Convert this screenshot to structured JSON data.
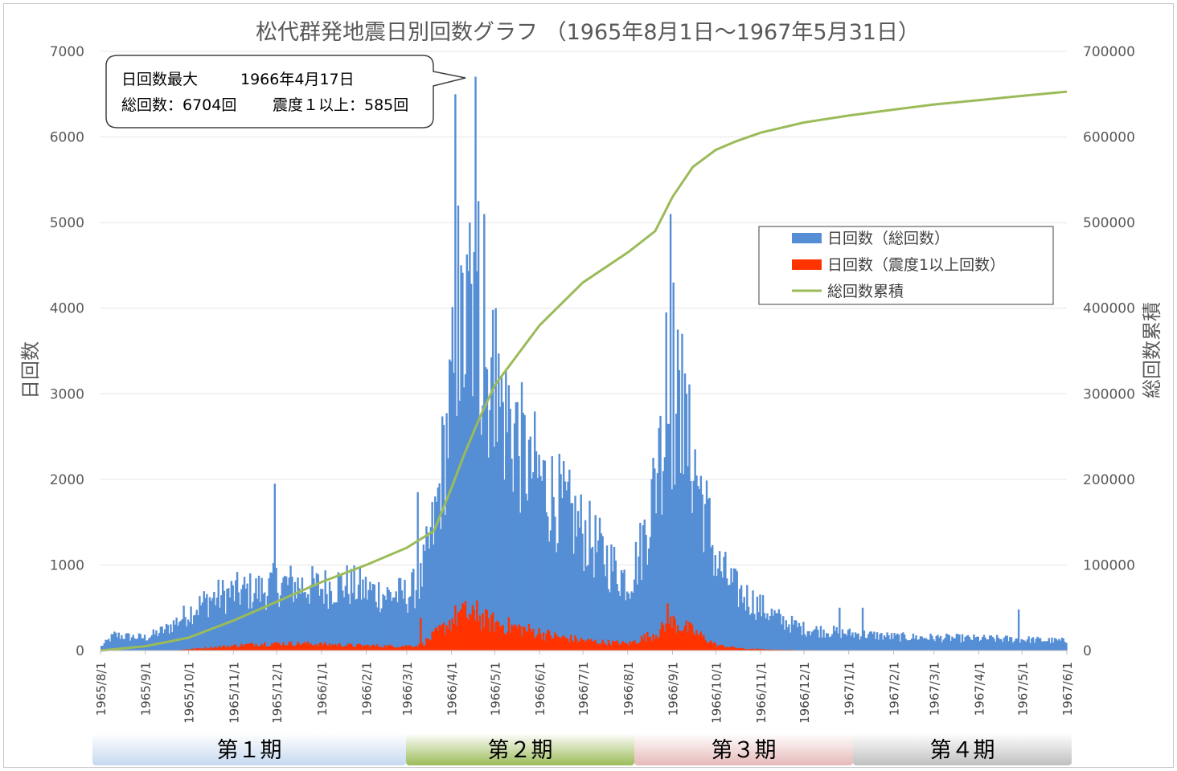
{
  "chart_data": {
    "type": "bar+line",
    "title": "松代群発地震日別回数グラフ （1965年8月1日～1967年5月31日）",
    "ylabel_left": "日回数",
    "ylabel_right": "総回数累積",
    "ylim_left": [
      0,
      7000
    ],
    "ylim_right": [
      0,
      700000
    ],
    "yticks_left": [
      "0",
      "1000",
      "2000",
      "3000",
      "4000",
      "5000",
      "6000",
      "7000"
    ],
    "yticks_right": [
      "0",
      "100000",
      "200000",
      "300000",
      "400000",
      "500000",
      "600000",
      "700000"
    ],
    "x_range": [
      "1965/8/1",
      "1967/6/1"
    ],
    "xticks": [
      "1965/8/1",
      "1965/9/1",
      "1965/10/1",
      "1965/11/1",
      "1965/12/1",
      "1966/1/1",
      "1966/2/1",
      "1966/3/1",
      "1966/4/1",
      "1966/5/1",
      "1966/6/1",
      "1966/7/1",
      "1966/8/1",
      "1966/9/1",
      "1966/10/1",
      "1966/11/1",
      "1966/12/1",
      "1967/1/1",
      "1967/2/1",
      "1967/3/1",
      "1967/4/1",
      "1967/5/1",
      "1967/6/1"
    ],
    "grid": true,
    "legend_position": "right-middle",
    "annotation": {
      "line1_label": "日回数最大",
      "line1_value": "1966年4月17日",
      "line2_total": "総回数：6704回",
      "line2_intensity": "震度１以上：585回"
    },
    "series": [
      {
        "name": "日回数（総回数）",
        "type": "bar",
        "color": "#558ed5",
        "envelope": [
          [
            "1965/8/1",
            50
          ],
          [
            "1965/8/10",
            180
          ],
          [
            "1965/8/20",
            160
          ],
          [
            "1965/9/1",
            150
          ],
          [
            "1965/9/15",
            250
          ],
          [
            "1965/10/1",
            450
          ],
          [
            "1965/10/15",
            600
          ],
          [
            "1965/11/1",
            680
          ],
          [
            "1965/11/20",
            700
          ],
          [
            "1965/12/1",
            780
          ],
          [
            "1965/12/15",
            760
          ],
          [
            "1966/1/1",
            730
          ],
          [
            "1966/1/15",
            780
          ],
          [
            "1966/2/1",
            700
          ],
          [
            "1966/2/15",
            650
          ],
          [
            "1966/3/1",
            650
          ],
          [
            "1966/3/10",
            800
          ],
          [
            "1966/3/20",
            1500
          ],
          [
            "1966/3/28",
            2500
          ],
          [
            "1966/4/5",
            3600
          ],
          [
            "1966/4/17",
            3800
          ],
          [
            "1966/4/25",
            3300
          ],
          [
            "1966/5/5",
            2800
          ],
          [
            "1966/5/20",
            2300
          ],
          [
            "1966/6/5",
            1900
          ],
          [
            "1966/6/20",
            1600
          ],
          [
            "1966/7/5",
            1300
          ],
          [
            "1966/7/20",
            1000
          ],
          [
            "1966/8/1",
            800
          ],
          [
            "1966/8/10",
            1200
          ],
          [
            "1966/8/20",
            2000
          ],
          [
            "1966/8/28",
            2800
          ],
          [
            "1966/9/5",
            2700
          ],
          [
            "1966/9/15",
            2200
          ],
          [
            "1966/9/25",
            1500
          ],
          [
            "1966/10/1",
            1000
          ],
          [
            "1966/10/15",
            700
          ],
          [
            "1966/11/1",
            500
          ],
          [
            "1966/11/15",
            350
          ],
          [
            "1966/12/1",
            250
          ],
          [
            "1967/1/1",
            200
          ],
          [
            "1967/2/1",
            160
          ],
          [
            "1967/3/1",
            150
          ],
          [
            "1967/4/1",
            140
          ],
          [
            "1967/5/1",
            130
          ],
          [
            "1967/5/31",
            110
          ]
        ],
        "spikes": [
          [
            "1965/11/29",
            1950
          ],
          [
            "1966/3/8",
            1850
          ],
          [
            "1966/3/20",
            1800
          ],
          [
            "1966/4/3",
            6500
          ],
          [
            "1966/4/5",
            5200
          ],
          [
            "1966/4/7",
            4500
          ],
          [
            "1966/4/13",
            5000
          ],
          [
            "1966/4/17",
            6704
          ],
          [
            "1966/4/19",
            5250
          ],
          [
            "1966/4/23",
            5100
          ],
          [
            "1966/5/1",
            4000
          ],
          [
            "1966/5/5",
            3200
          ],
          [
            "1966/5/10",
            3100
          ],
          [
            "1966/5/15",
            2900
          ],
          [
            "1966/5/25",
            2500
          ],
          [
            "1966/8/22",
            2600
          ],
          [
            "1966/8/27",
            3950
          ],
          [
            "1966/8/30",
            5100
          ],
          [
            "1966/9/1",
            4300
          ],
          [
            "1966/9/4",
            3750
          ],
          [
            "1966/9/7",
            3700
          ],
          [
            "1966/9/10",
            3000
          ],
          [
            "1966/12/25",
            500
          ],
          [
            "1967/1/10",
            500
          ],
          [
            "1967/4/28",
            480
          ]
        ]
      },
      {
        "name": "日回数（震度1以上回数）",
        "type": "bar",
        "color": "#ff3300",
        "envelope": [
          [
            "1965/8/1",
            0
          ],
          [
            "1965/9/20",
            2
          ],
          [
            "1965/10/20",
            40
          ],
          [
            "1965/11/20",
            80
          ],
          [
            "1965/12/20",
            80
          ],
          [
            "1966/1/20",
            60
          ],
          [
            "1966/2/20",
            50
          ],
          [
            "1966/3/10",
            60
          ],
          [
            "1966/3/25",
            250
          ],
          [
            "1966/4/5",
            420
          ],
          [
            "1966/4/20",
            370
          ],
          [
            "1966/5/5",
            300
          ],
          [
            "1966/5/25",
            230
          ],
          [
            "1966/6/15",
            150
          ],
          [
            "1966/7/10",
            100
          ],
          [
            "1966/8/1",
            80
          ],
          [
            "1966/8/20",
            200
          ],
          [
            "1966/9/1",
            330
          ],
          [
            "1966/9/15",
            220
          ],
          [
            "1966/10/1",
            60
          ],
          [
            "1966/10/20",
            20
          ],
          [
            "1966/11/15",
            8
          ],
          [
            "1966/12/15",
            3
          ],
          [
            "1967/5/31",
            2
          ]
        ],
        "spikes": [
          [
            "1966/3/10",
            380
          ],
          [
            "1966/4/10",
            580
          ],
          [
            "1966/4/18",
            585
          ],
          [
            "1966/8/28",
            550
          ]
        ]
      },
      {
        "name": "総回数累積",
        "type": "line",
        "axis": "right",
        "color": "#9bbb59",
        "points": [
          [
            "1965/8/1",
            0
          ],
          [
            "1965/9/1",
            5000
          ],
          [
            "1965/10/1",
            15000
          ],
          [
            "1965/11/1",
            35000
          ],
          [
            "1965/12/1",
            57000
          ],
          [
            "1966/1/1",
            80000
          ],
          [
            "1966/2/1",
            100000
          ],
          [
            "1966/3/1",
            120000
          ],
          [
            "1966/3/20",
            140000
          ],
          [
            "1966/4/1",
            190000
          ],
          [
            "1966/4/10",
            230000
          ],
          [
            "1966/4/20",
            270000
          ],
          [
            "1966/5/1",
            310000
          ],
          [
            "1966/6/1",
            380000
          ],
          [
            "1966/7/1",
            430000
          ],
          [
            "1966/8/1",
            465000
          ],
          [
            "1966/8/20",
            490000
          ],
          [
            "1966/9/1",
            530000
          ],
          [
            "1966/9/15",
            565000
          ],
          [
            "1966/10/1",
            585000
          ],
          [
            "1966/10/15",
            595000
          ],
          [
            "1966/11/1",
            605000
          ],
          [
            "1966/12/1",
            617000
          ],
          [
            "1967/1/1",
            625000
          ],
          [
            "1967/2/1",
            632000
          ],
          [
            "1967/3/1",
            638000
          ],
          [
            "1967/4/1",
            643000
          ],
          [
            "1967/5/1",
            648000
          ],
          [
            "1967/6/1",
            653000
          ]
        ]
      }
    ],
    "periods": [
      {
        "label": "第１期",
        "color": "#dce6f2"
      },
      {
        "label": "第２期",
        "color": "#d7e4bd"
      },
      {
        "label": "第３期",
        "color": "#f2dcdb"
      },
      {
        "label": "第４期",
        "color": "#e6e6e6"
      }
    ]
  }
}
